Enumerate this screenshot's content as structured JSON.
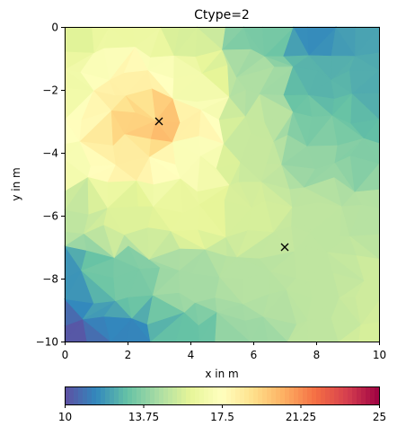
{
  "chart_data": {
    "type": "heatmap",
    "title": "Ctype=2",
    "xlabel": "x in m",
    "ylabel": "y in m",
    "xlim": [
      0,
      10
    ],
    "ylim": [
      -10,
      0
    ],
    "xticks": [
      "0",
      "2",
      "4",
      "6",
      "8",
      "10"
    ],
    "yticks": [
      "0",
      "−2",
      "−4",
      "−6",
      "−8",
      "−10"
    ],
    "colormap": "Spectral_r",
    "color_range": [
      10,
      25
    ],
    "colorbar_ticks": [
      "10",
      "13.75",
      "17.5",
      "21.25",
      "25"
    ],
    "markers": [
      {
        "x": 3,
        "y": -3,
        "symbol": "x"
      },
      {
        "x": 7,
        "y": -7,
        "symbol": "x"
      }
    ],
    "field_samples": [
      {
        "x": 0,
        "y": 0,
        "v": 15.8
      },
      {
        "x": 2,
        "y": 0,
        "v": 16.4
      },
      {
        "x": 4,
        "y": 0,
        "v": 15.6
      },
      {
        "x": 6,
        "y": 0,
        "v": 13.4
      },
      {
        "x": 8,
        "y": 0,
        "v": 11.6
      },
      {
        "x": 10,
        "y": 0,
        "v": 12.2
      },
      {
        "x": 0,
        "y": -2,
        "v": 16.6
      },
      {
        "x": 2,
        "y": -2,
        "v": 18.2
      },
      {
        "x": 4,
        "y": -2,
        "v": 16.8
      },
      {
        "x": 6,
        "y": -2,
        "v": 14.6
      },
      {
        "x": 8,
        "y": -2,
        "v": 12.6
      },
      {
        "x": 10,
        "y": -2,
        "v": 12.4
      },
      {
        "x": 0,
        "y": -3,
        "v": 17.6
      },
      {
        "x": 2,
        "y": -3,
        "v": 19.4
      },
      {
        "x": 3,
        "y": -3,
        "v": 20.2
      },
      {
        "x": 4,
        "y": -3,
        "v": 18.2
      },
      {
        "x": 6,
        "y": -3,
        "v": 15.2
      },
      {
        "x": 8,
        "y": -3,
        "v": 13.4
      },
      {
        "x": 10,
        "y": -3,
        "v": 12.8
      },
      {
        "x": 0,
        "y": -4,
        "v": 17.0
      },
      {
        "x": 2,
        "y": -4,
        "v": 18.4
      },
      {
        "x": 4,
        "y": -4,
        "v": 17.2
      },
      {
        "x": 6,
        "y": -4,
        "v": 15.2
      },
      {
        "x": 8,
        "y": -4,
        "v": 14.0
      },
      {
        "x": 10,
        "y": -4,
        "v": 13.6
      },
      {
        "x": 0,
        "y": -6,
        "v": 15.0
      },
      {
        "x": 2,
        "y": -6,
        "v": 15.8
      },
      {
        "x": 4,
        "y": -6,
        "v": 16.2
      },
      {
        "x": 6,
        "y": -6,
        "v": 15.6
      },
      {
        "x": 8,
        "y": -6,
        "v": 15.0
      },
      {
        "x": 10,
        "y": -6,
        "v": 14.8
      },
      {
        "x": 0,
        "y": -8,
        "v": 11.8
      },
      {
        "x": 2,
        "y": -8,
        "v": 13.4
      },
      {
        "x": 4,
        "y": -8,
        "v": 14.4
      },
      {
        "x": 6,
        "y": -8,
        "v": 14.8
      },
      {
        "x": 8,
        "y": -8,
        "v": 15.0
      },
      {
        "x": 10,
        "y": -8,
        "v": 15.4
      },
      {
        "x": 0,
        "y": -10,
        "v": 10.2
      },
      {
        "x": 2,
        "y": -10,
        "v": 11.4
      },
      {
        "x": 4,
        "y": -10,
        "v": 13.0
      },
      {
        "x": 6,
        "y": -10,
        "v": 14.2
      },
      {
        "x": 8,
        "y": -10,
        "v": 15.0
      },
      {
        "x": 10,
        "y": -10,
        "v": 15.6
      }
    ]
  }
}
